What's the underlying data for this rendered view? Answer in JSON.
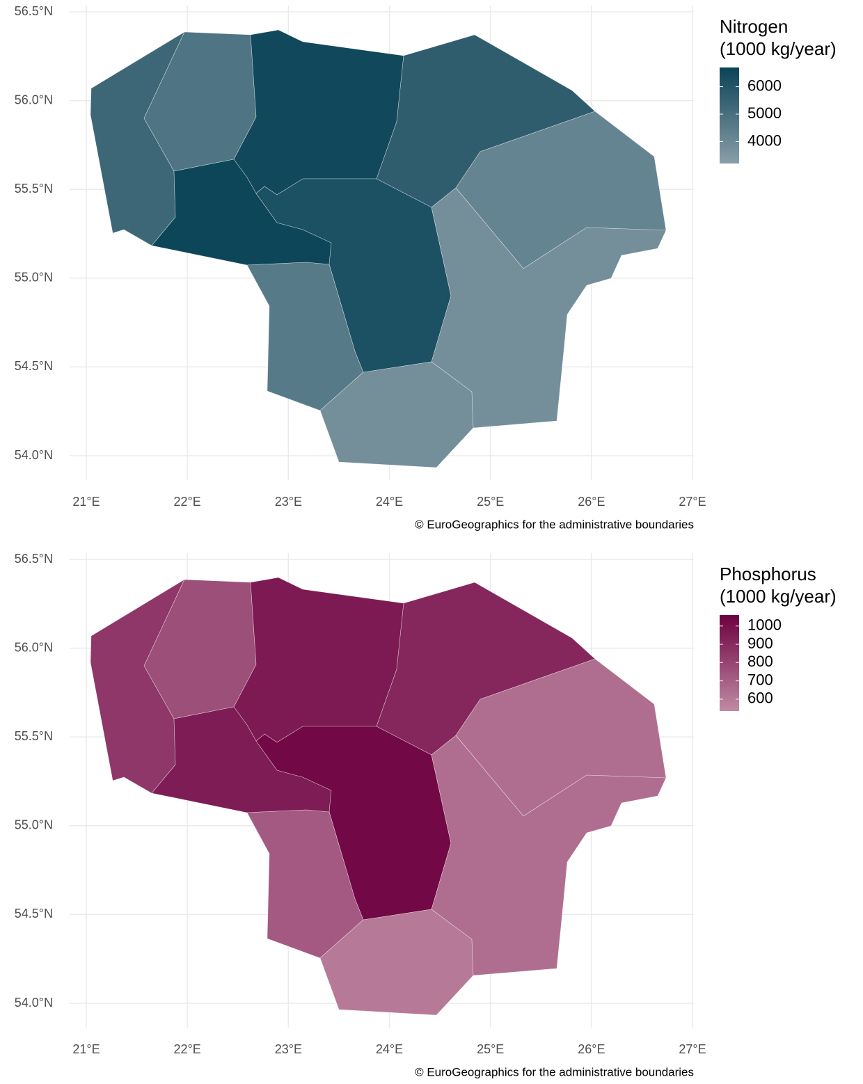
{
  "xticks": [
    {
      "value": 21,
      "label": "21°E"
    },
    {
      "value": 22,
      "label": "22°E"
    },
    {
      "value": 23,
      "label": "23°E"
    },
    {
      "value": 24,
      "label": "24°E"
    },
    {
      "value": 25,
      "label": "25°E"
    },
    {
      "value": 26,
      "label": "26°E"
    },
    {
      "value": 27,
      "label": "27°E"
    }
  ],
  "yticks": [
    {
      "value": 54.0,
      "label": "54.0°N"
    },
    {
      "value": 54.5,
      "label": "54.5°N"
    },
    {
      "value": 55.0,
      "label": "55.0°N"
    },
    {
      "value": 55.5,
      "label": "55.5°N"
    },
    {
      "value": 56.0,
      "label": "56.0°N"
    },
    {
      "value": 56.5,
      "label": "56.5°N"
    }
  ],
  "caption": "© EuroGeographics for the administrative boundaries",
  "maps": [
    {
      "type": "choropleth",
      "legend_title": [
        "Nitrogen",
        "(1000 kg/year)"
      ],
      "legend_ticks": [
        4000,
        5000,
        6000
      ],
      "limits": [
        3200,
        6700
      ],
      "colors": [
        "#8a9ea8",
        "#0a4357"
      ],
      "values": [
        5300,
        4800,
        6500,
        5700,
        4200,
        6600,
        6200,
        4600,
        3800,
        3800
      ]
    },
    {
      "type": "choropleth",
      "legend_title": [
        "Phosphorus",
        "(1000 kg/year)"
      ],
      "legend_ticks": [
        600,
        700,
        800,
        900,
        1000
      ],
      "limits": [
        535,
        1060
      ],
      "colors": [
        "#c08aa4",
        "#6d0040"
      ],
      "values": [
        850,
        760,
        960,
        910,
        640,
        950,
        1030,
        720,
        600,
        640
      ]
    }
  ]
}
